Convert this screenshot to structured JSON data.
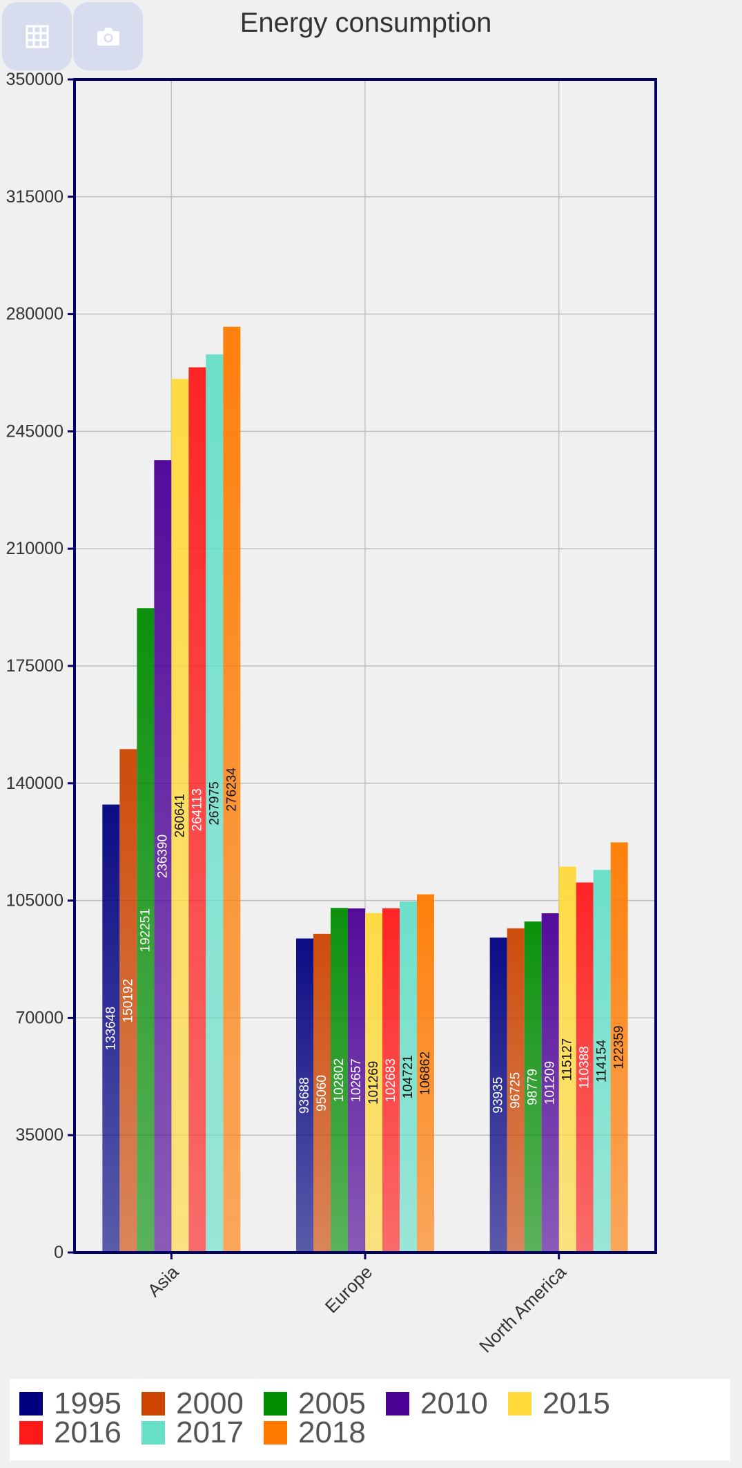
{
  "toolbar": {
    "table_icon": "grid-icon",
    "camera_icon": "camera-icon"
  },
  "chart_data": {
    "type": "bar",
    "title": "Energy consumption",
    "categories": [
      "Asia",
      "Europe",
      "North America"
    ],
    "series": [
      {
        "name": "1995",
        "color": "#000080",
        "values": [
          133648,
          93688,
          93935
        ]
      },
      {
        "name": "2000",
        "color": "#cc4400",
        "values": [
          150192,
          95060,
          96725
        ]
      },
      {
        "name": "2005",
        "color": "#008c00",
        "values": [
          192251,
          102802,
          98779
        ]
      },
      {
        "name": "2010",
        "color": "#4b0096",
        "values": [
          236390,
          102657,
          101209
        ]
      },
      {
        "name": "2015",
        "color": "#ffd93a",
        "values": [
          260641,
          101269,
          115127
        ]
      },
      {
        "name": "2016",
        "color": "#ff1a1a",
        "values": [
          264113,
          102683,
          110388
        ]
      },
      {
        "name": "2017",
        "color": "#66dfc8",
        "values": [
          267975,
          104721,
          114154
        ]
      },
      {
        "name": "2018",
        "color": "#ff7a00",
        "values": [
          276234,
          106862,
          122359
        ]
      }
    ],
    "ylim": [
      0,
      350000
    ],
    "yticks": [
      0,
      35000,
      70000,
      105000,
      140000,
      175000,
      210000,
      245000,
      280000,
      315000,
      350000
    ],
    "grid": true,
    "legend_position": "bottom"
  }
}
